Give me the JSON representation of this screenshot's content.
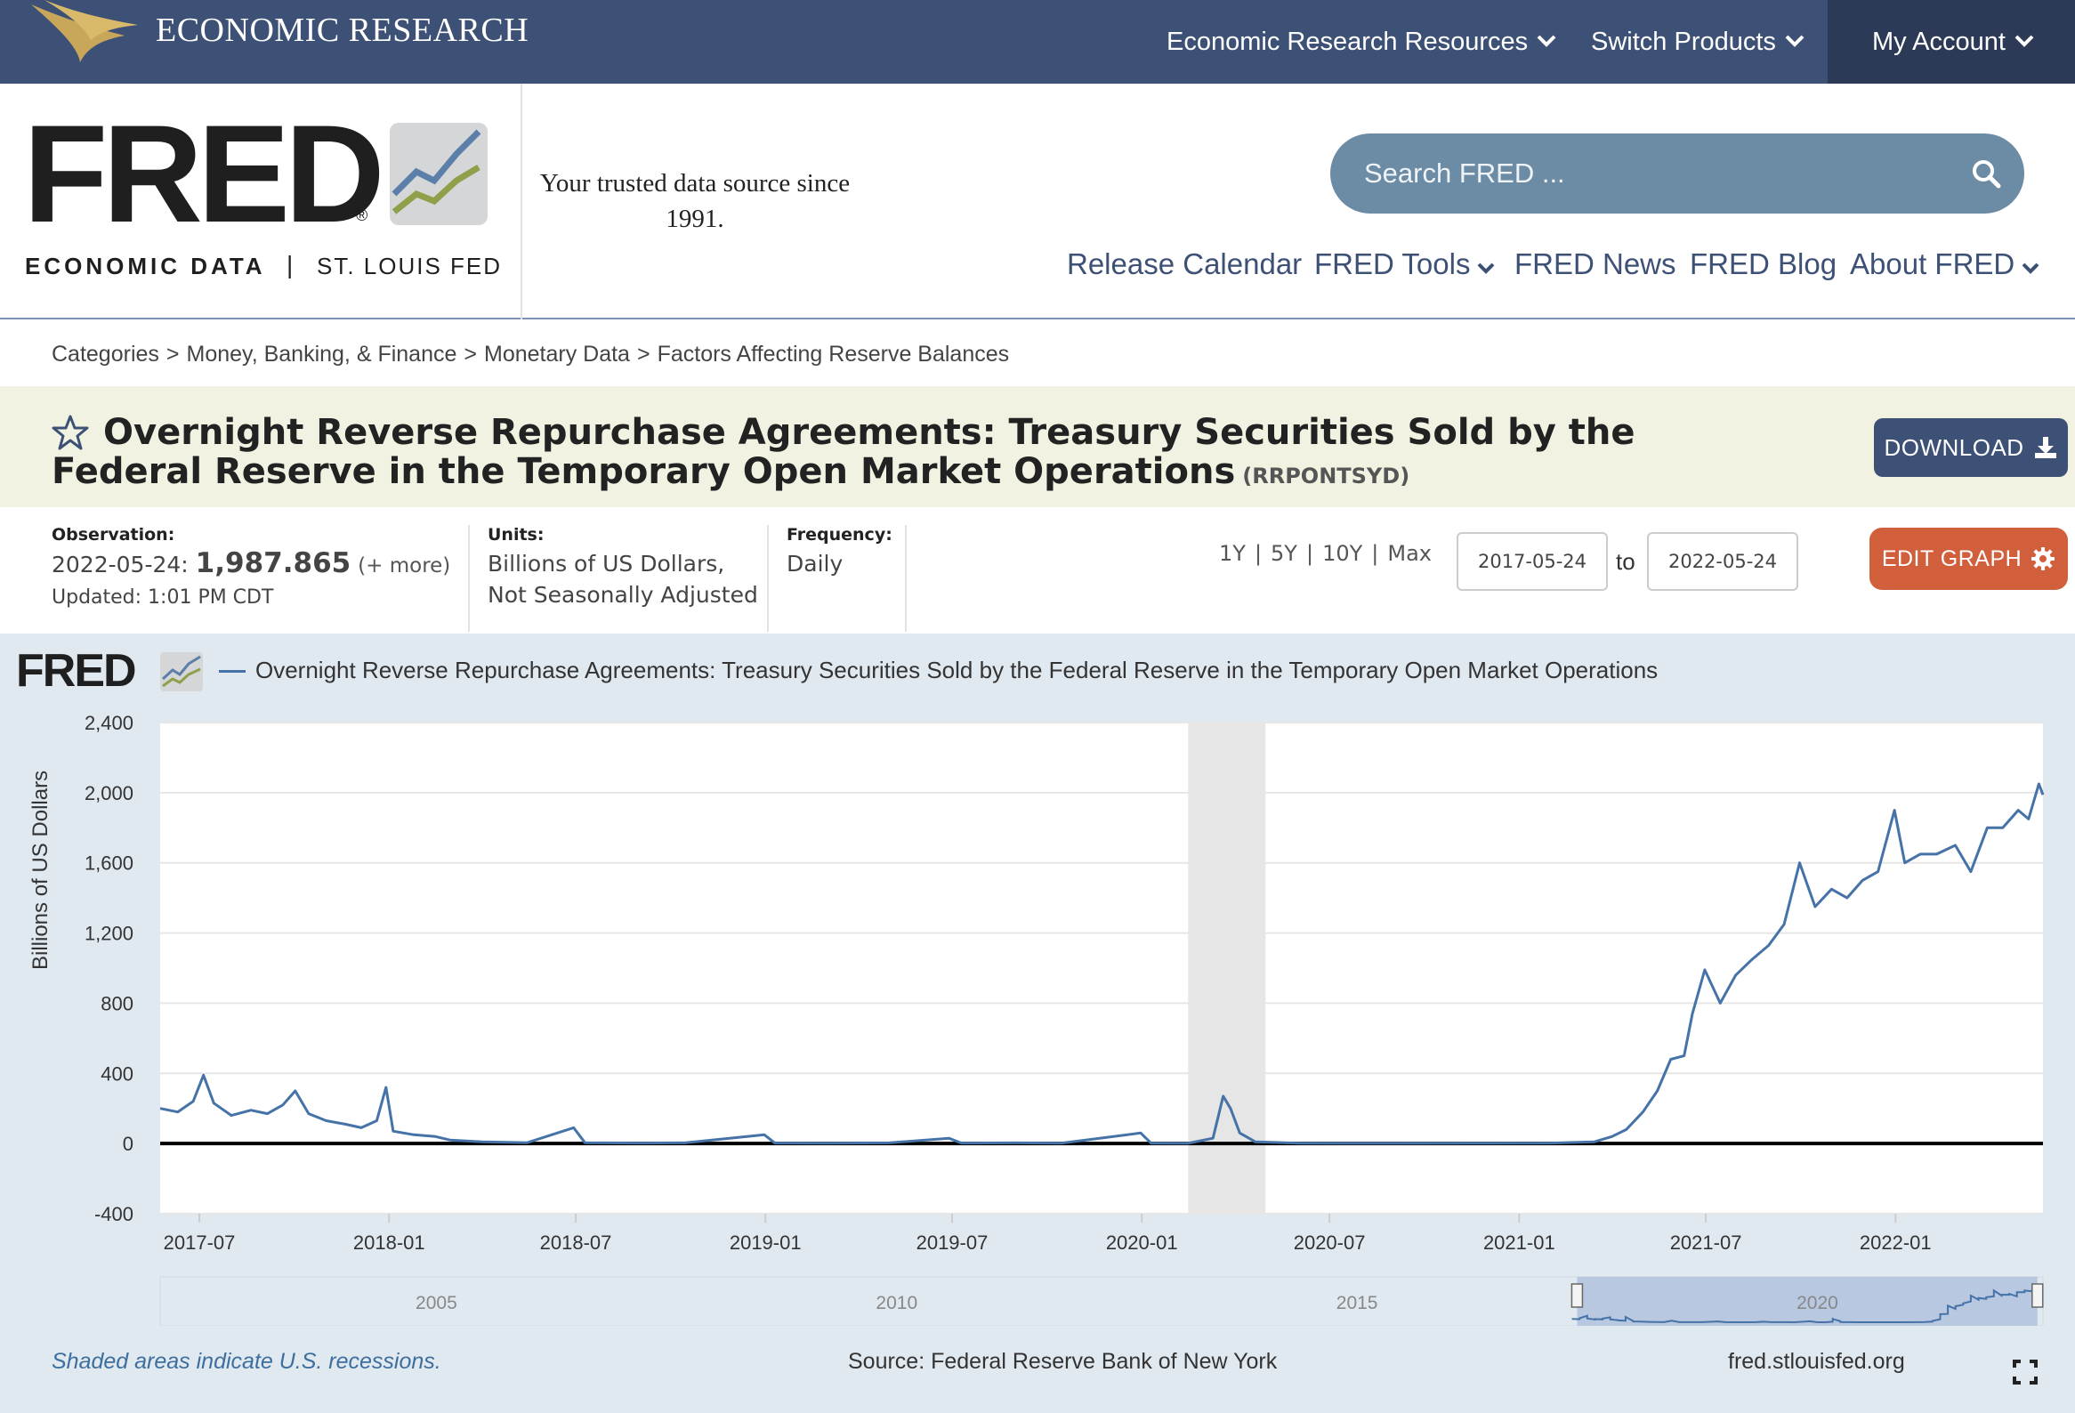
{
  "topbar": {
    "brand": "ECONOMIC RESEARCH",
    "nav": [
      {
        "label": "Economic Research Resources"
      },
      {
        "label": "Switch Products"
      },
      {
        "label": "My Account"
      }
    ]
  },
  "header": {
    "logo_word": "FRED",
    "logo_reg": "®",
    "econ_data": "ECONOMIC DATA",
    "separator": "|",
    "stl_fed": "ST. LOUIS FED",
    "tagline": "Your trusted data source since 1991.",
    "search_placeholder": "Search FRED ...",
    "nav": [
      {
        "label": "Release Calendar"
      },
      {
        "label": "FRED Tools"
      },
      {
        "label": "FRED News"
      },
      {
        "label": "FRED Blog"
      },
      {
        "label": "About FRED"
      }
    ]
  },
  "breadcrumb": [
    "Categories",
    "Money, Banking, & Finance",
    "Monetary Data",
    "Factors Affecting Reserve Balances"
  ],
  "series": {
    "title": "Overnight Reverse Repurchase Agreements: Treasury Securities Sold by the Federal Reserve in the Temporary Open Market Operations",
    "id": "(RRPONTSYD)",
    "download_label": "DOWNLOAD"
  },
  "meta": {
    "observation_label": "Observation:",
    "observation_date": "2022-05-24:",
    "observation_value": "1,987.865",
    "observation_more": "(+ more)",
    "updated": "Updated: 1:01 PM CDT",
    "units_label": "Units:",
    "units_line1": "Billions of US Dollars,",
    "units_line2": "Not Seasonally Adjusted",
    "frequency_label": "Frequency:",
    "frequency": "Daily",
    "range_links": [
      "1Y",
      "5Y",
      "10Y",
      "Max"
    ],
    "range_sep": "|",
    "date_from": "2017-05-24",
    "date_to": "2022-05-24",
    "to_label": "to",
    "edit_label": "EDIT GRAPH"
  },
  "graph": {
    "logo_word": "FRED",
    "legend": "Overnight Reverse Repurchase Agreements: Treasury Securities Sold by the Federal Reserve in the Temporary Open Market Operations",
    "ylabel": "Billions of US Dollars",
    "shaded_note": "Shaded areas indicate U.S. recessions.",
    "source": "Source: Federal Reserve Bank of New York",
    "site": "fred.stlouisfed.org"
  },
  "colors": {
    "topbar": "#3d5075",
    "series": "#4572a7",
    "download": "#3d5075",
    "edit": "#d25f3c",
    "panel": "#e1e9f0",
    "title_band": "#f2f2e2"
  },
  "chart_data": {
    "type": "line",
    "xlabel": "",
    "ylabel": "Billions of US Dollars",
    "ylim": [
      -400,
      2400
    ],
    "yticks": [
      "2,400",
      "2,000",
      "1,600",
      "1,200",
      "800",
      "400",
      "0",
      "-400"
    ],
    "ytick_values": [
      2400,
      2000,
      1600,
      1200,
      800,
      400,
      0,
      -400
    ],
    "xticks": [
      "2017-07",
      "2018-01",
      "2018-07",
      "2019-01",
      "2019-07",
      "2020-01",
      "2020-07",
      "2021-01",
      "2021-07",
      "2022-01"
    ],
    "xlim": [
      "2017-05-24",
      "2022-05-24"
    ],
    "recession": [
      "2020-02-15",
      "2020-04-30"
    ],
    "series": [
      {
        "name": "Overnight Reverse Repurchase Agreements: Treasury Securities Sold by the Federal Reserve in the Temporary Open Market Operations",
        "points": [
          [
            "2017-05-24",
            200
          ],
          [
            "2017-06-10",
            180
          ],
          [
            "2017-06-25",
            240
          ],
          [
            "2017-07-05",
            390
          ],
          [
            "2017-07-15",
            230
          ],
          [
            "2017-08-01",
            160
          ],
          [
            "2017-08-20",
            190
          ],
          [
            "2017-09-05",
            170
          ],
          [
            "2017-09-20",
            220
          ],
          [
            "2017-10-02",
            300
          ],
          [
            "2017-10-15",
            170
          ],
          [
            "2017-11-01",
            130
          ],
          [
            "2017-11-20",
            110
          ],
          [
            "2017-12-05",
            90
          ],
          [
            "2017-12-20",
            130
          ],
          [
            "2017-12-29",
            320
          ],
          [
            "2018-01-05",
            70
          ],
          [
            "2018-01-25",
            50
          ],
          [
            "2018-02-15",
            40
          ],
          [
            "2018-03-01",
            20
          ],
          [
            "2018-04-01",
            10
          ],
          [
            "2018-05-15",
            5
          ],
          [
            "2018-06-29",
            90
          ],
          [
            "2018-07-10",
            5
          ],
          [
            "2018-09-01",
            3
          ],
          [
            "2018-10-15",
            4
          ],
          [
            "2018-12-31",
            50
          ],
          [
            "2019-01-10",
            3
          ],
          [
            "2019-03-01",
            2
          ],
          [
            "2019-05-01",
            4
          ],
          [
            "2019-06-28",
            30
          ],
          [
            "2019-07-10",
            3
          ],
          [
            "2019-09-01",
            4
          ],
          [
            "2019-10-15",
            2
          ],
          [
            "2019-12-31",
            60
          ],
          [
            "2020-01-10",
            2
          ],
          [
            "2020-02-15",
            1
          ],
          [
            "2020-03-10",
            30
          ],
          [
            "2020-03-20",
            270
          ],
          [
            "2020-03-27",
            200
          ],
          [
            "2020-04-05",
            60
          ],
          [
            "2020-04-20",
            10
          ],
          [
            "2020-06-01",
            2
          ],
          [
            "2020-09-01",
            1
          ],
          [
            "2020-12-01",
            2
          ],
          [
            "2021-02-01",
            3
          ],
          [
            "2021-03-15",
            10
          ],
          [
            "2021-04-01",
            40
          ],
          [
            "2021-04-15",
            80
          ],
          [
            "2021-05-01",
            180
          ],
          [
            "2021-05-15",
            300
          ],
          [
            "2021-05-28",
            480
          ],
          [
            "2021-06-10",
            500
          ],
          [
            "2021-06-18",
            740
          ],
          [
            "2021-06-30",
            990
          ],
          [
            "2021-07-15",
            800
          ],
          [
            "2021-07-30",
            960
          ],
          [
            "2021-08-15",
            1050
          ],
          [
            "2021-08-31",
            1130
          ],
          [
            "2021-09-15",
            1250
          ],
          [
            "2021-09-30",
            1600
          ],
          [
            "2021-10-15",
            1350
          ],
          [
            "2021-10-31",
            1450
          ],
          [
            "2021-11-15",
            1400
          ],
          [
            "2021-11-30",
            1500
          ],
          [
            "2021-12-15",
            1550
          ],
          [
            "2021-12-31",
            1900
          ],
          [
            "2022-01-10",
            1600
          ],
          [
            "2022-01-25",
            1650
          ],
          [
            "2022-02-10",
            1650
          ],
          [
            "2022-02-28",
            1700
          ],
          [
            "2022-03-15",
            1550
          ],
          [
            "2022-03-31",
            1800
          ],
          [
            "2022-04-15",
            1800
          ],
          [
            "2022-04-30",
            1900
          ],
          [
            "2022-05-10",
            1850
          ],
          [
            "2022-05-20",
            2050
          ],
          [
            "2022-05-24",
            1987.865
          ]
        ]
      }
    ],
    "navigator_xticks": [
      "2005",
      "2010",
      "2015",
      "2020"
    ]
  }
}
